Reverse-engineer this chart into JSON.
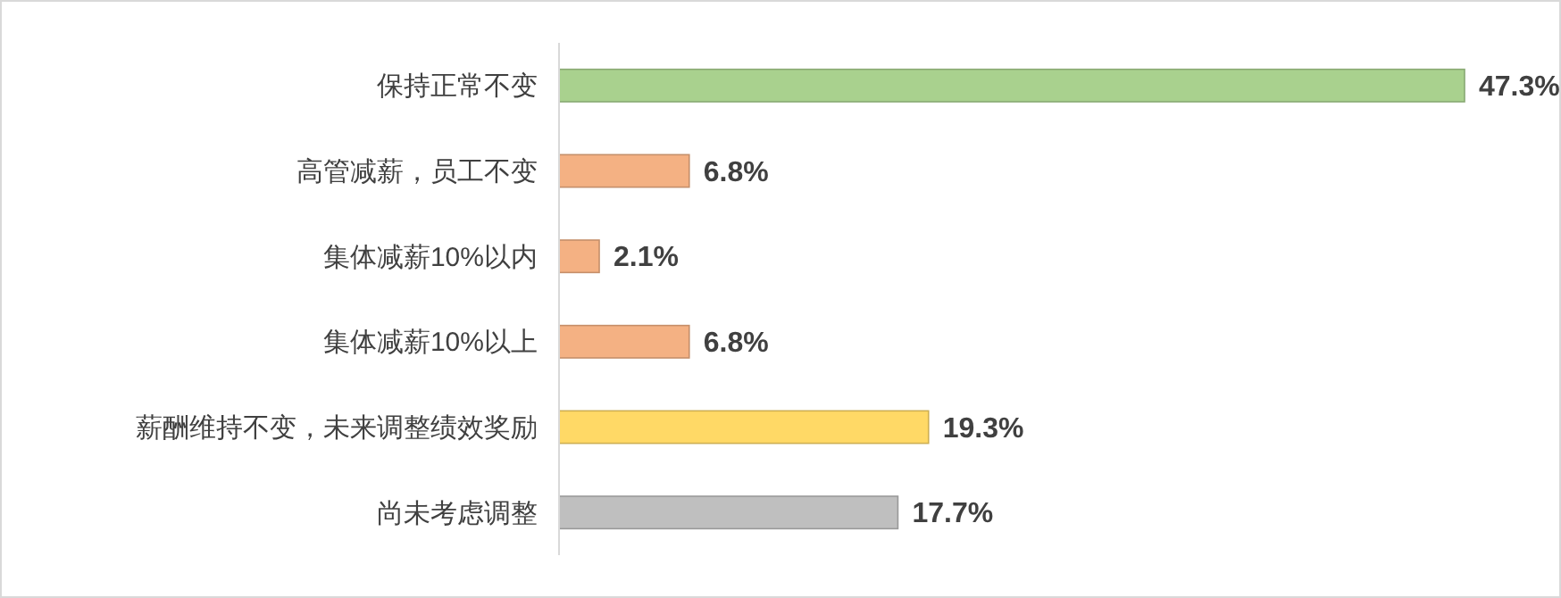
{
  "chart_data": {
    "type": "bar",
    "orientation": "horizontal",
    "categories": [
      "保持正常不变",
      "高管减薪，员工不变",
      "集体减薪10%以内",
      "集体减薪10%以上",
      "薪酬维持不变，未来调整绩效奖励",
      "尚未考虑调整"
    ],
    "values": [
      47.3,
      6.8,
      2.1,
      6.8,
      19.3,
      17.7
    ],
    "colors": [
      "#a9d18e",
      "#f4b183",
      "#f4b183",
      "#f4b183",
      "#ffd966",
      "#bfbfbf"
    ],
    "value_labels": [
      "47.3%",
      "6.8%",
      "2.1%",
      "6.8%",
      "19.3%",
      "17.7%"
    ]
  }
}
